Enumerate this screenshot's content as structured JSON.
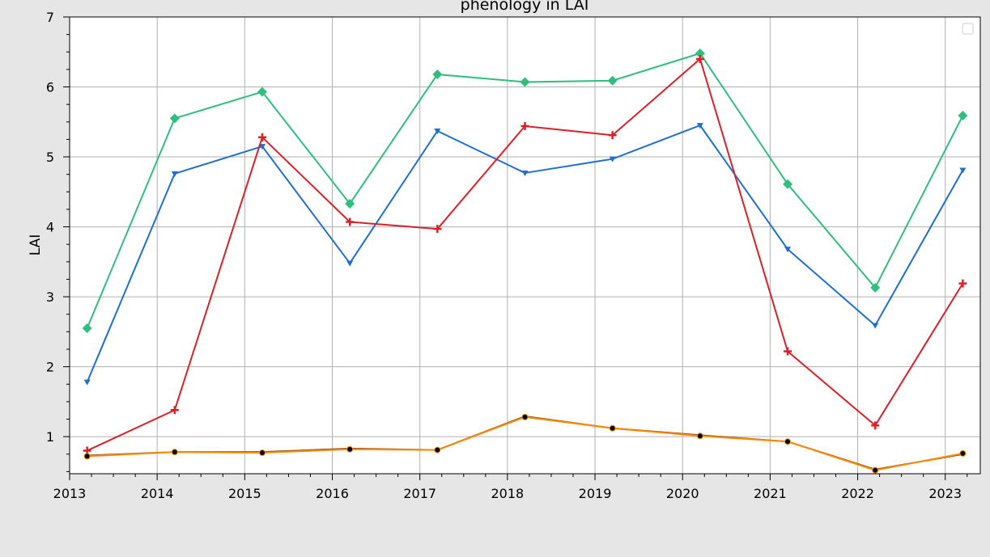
{
  "chart_data": {
    "type": "line",
    "title": "phenology in LAI",
    "xlabel": "",
    "ylabel": "LAI",
    "x_ticks": [
      "2013",
      "2014",
      "2015",
      "2016",
      "2017",
      "2018",
      "2019",
      "2020",
      "2021",
      "2022",
      "2023"
    ],
    "y_ticks": [
      "1",
      "2",
      "3",
      "4",
      "5",
      "6",
      "7"
    ],
    "xlim": [
      2013.0,
      2023.4
    ],
    "ylim": [
      0.47,
      7.0
    ],
    "grid": true,
    "legend": "top-right, empty",
    "x": [
      2013.2,
      2014.2,
      2015.2,
      2016.2,
      2017.2,
      2018.2,
      2019.2,
      2020.2,
      2021.2,
      2022.2,
      2023.2
    ],
    "series": [
      {
        "color": "#2fbf7c",
        "marker": "diamond",
        "values": [
          2.55,
          5.55,
          5.93,
          4.33,
          6.18,
          6.07,
          6.09,
          6.48,
          4.61,
          3.13,
          5.59
        ]
      },
      {
        "color": "#1f6fd1",
        "marker": "triangle-down",
        "values": [
          1.78,
          4.76,
          5.15,
          3.48,
          5.37,
          4.77,
          4.97,
          5.45,
          3.68,
          2.59,
          4.81
        ]
      },
      {
        "color": "#dc2028",
        "marker": "plus",
        "values": [
          0.8,
          1.38,
          5.28,
          4.07,
          3.97,
          5.44,
          5.31,
          6.4,
          2.22,
          1.16,
          3.19
        ]
      },
      {
        "color": "#8b4513",
        "marker": "none",
        "values": [
          0.73,
          0.78,
          0.78,
          0.83,
          0.81,
          1.29,
          1.12,
          1.02,
          0.93,
          0.53,
          0.75
        ]
      },
      {
        "color": "#ff8c00",
        "marker": "circle",
        "values": [
          0.72,
          0.78,
          0.77,
          0.82,
          0.81,
          1.28,
          1.12,
          1.01,
          0.93,
          0.52,
          0.76
        ]
      }
    ]
  }
}
